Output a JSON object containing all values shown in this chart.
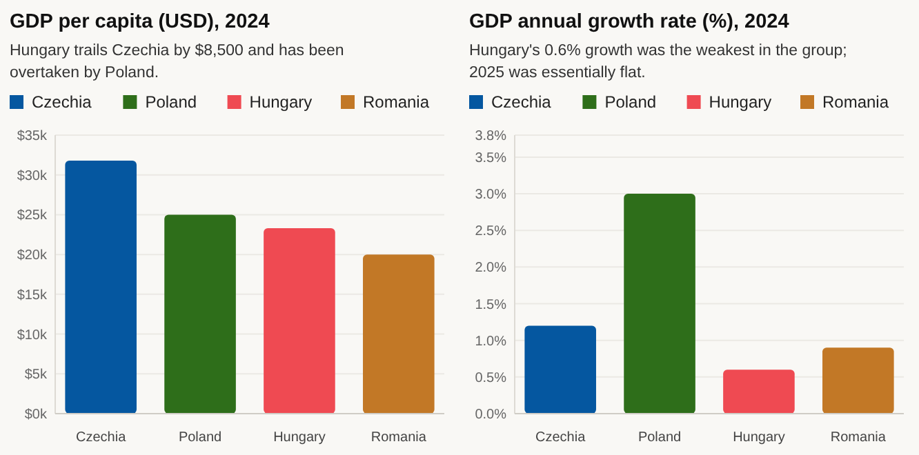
{
  "chart_data": [
    {
      "type": "bar",
      "title": "GDP per capita (USD), 2024",
      "subtitle": "Hungary trails Czechia by $8,500 and has been overtaken by Poland.",
      "categories": [
        "Czechia",
        "Poland",
        "Hungary",
        "Romania"
      ],
      "stacked": true,
      "series": [
        {
          "name": "Czechia",
          "color": "#0557a0",
          "values": [
            31.8,
            null,
            null,
            null
          ]
        },
        {
          "name": "Poland",
          "color": "#2e6e1a",
          "values": [
            null,
            25.0,
            null,
            null
          ]
        },
        {
          "name": "Hungary",
          "color": "#ef4a52",
          "values": [
            null,
            null,
            23.3,
            null
          ]
        },
        {
          "name": "Romania",
          "color": "#c27826",
          "values": [
            null,
            null,
            null,
            20.0
          ]
        }
      ],
      "ylim": [
        0,
        35
      ],
      "yticks": [
        {
          "value": 0,
          "label": "$0k"
        },
        {
          "value": 5,
          "label": "$5k"
        },
        {
          "value": 10,
          "label": "$10k"
        },
        {
          "value": 15,
          "label": "$15k"
        },
        {
          "value": 20,
          "label": "$20k"
        },
        {
          "value": 25,
          "label": "$25k"
        },
        {
          "value": 30,
          "label": "$30k"
        },
        {
          "value": 35,
          "label": "$35k"
        }
      ],
      "grid": "y",
      "legend": "top left"
    },
    {
      "type": "bar",
      "title": "GDP annual growth rate (%), 2024",
      "subtitle": "Hungary's 0.6% growth was the weakest in the group; 2025 was essentially flat.",
      "categories": [
        "Czechia",
        "Poland",
        "Hungary",
        "Romania"
      ],
      "stacked": true,
      "series": [
        {
          "name": "Czechia",
          "color": "#0557a0",
          "values": [
            1.2,
            null,
            null,
            null
          ]
        },
        {
          "name": "Poland",
          "color": "#2e6e1a",
          "values": [
            null,
            3.0,
            null,
            null
          ]
        },
        {
          "name": "Hungary",
          "color": "#ef4a52",
          "values": [
            null,
            null,
            0.6,
            null
          ]
        },
        {
          "name": "Romania",
          "color": "#c27826",
          "values": [
            null,
            null,
            null,
            0.9
          ]
        }
      ],
      "ylim": [
        0,
        3.8
      ],
      "yticks": [
        {
          "value": 0,
          "label": "0.0%"
        },
        {
          "value": 0.5,
          "label": "0.5%"
        },
        {
          "value": 1,
          "label": "1.0%"
        },
        {
          "value": 1.5,
          "label": "1.5%"
        },
        {
          "value": 2,
          "label": "2.0%"
        },
        {
          "value": 2.5,
          "label": "2.5%"
        },
        {
          "value": 3,
          "label": "3.0%"
        },
        {
          "value": 3.5,
          "label": "3.5%"
        },
        {
          "value": 3.8,
          "label": "3.8%"
        }
      ],
      "grid": "y",
      "legend": "top left"
    }
  ]
}
